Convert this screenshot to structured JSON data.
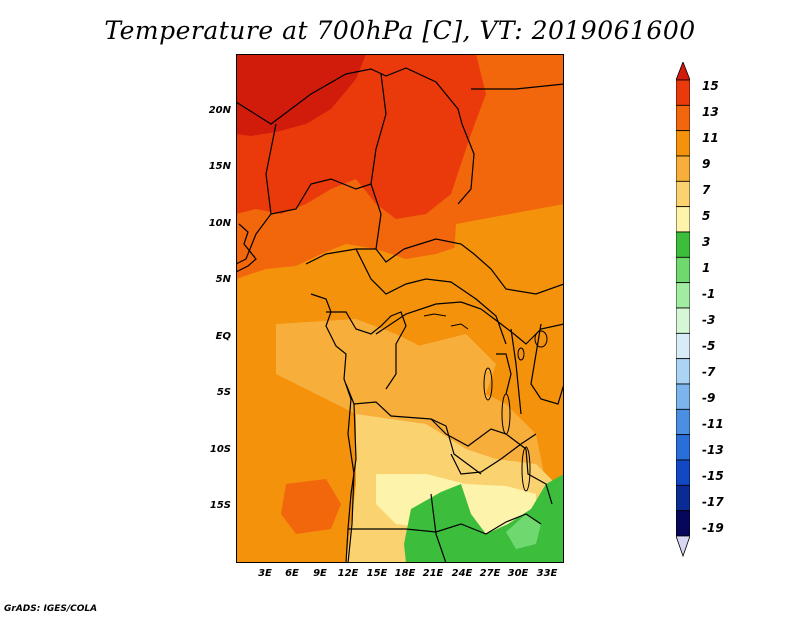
{
  "title": "Temperature at 700hPa [C], VT: 2019061600",
  "credit": "GrADS: IGES/COLA",
  "map": {
    "lat_labels": [
      "20N",
      "15N",
      "10N",
      "5N",
      "EQ",
      "5S",
      "10S",
      "15S"
    ],
    "lon_labels": [
      "3E",
      "6E",
      "9E",
      "12E",
      "15E",
      "18E",
      "21E",
      "24E",
      "27E",
      "30E",
      "33E"
    ]
  },
  "colorbar": {
    "labels": [
      "15",
      "13",
      "11",
      "9",
      "7",
      "5",
      "3",
      "1",
      "-1",
      "-3",
      "-5",
      "-7",
      "-9",
      "-11",
      "-13",
      "-15",
      "-17",
      "-19"
    ],
    "colors": [
      "#d11c0c",
      "#ea3a0c",
      "#f2660c",
      "#f4920c",
      "#f7ae3a",
      "#fbd270",
      "#fdf3aa",
      "#3cbd3c",
      "#6fd96f",
      "#a2eba2",
      "#d6f7d6",
      "#d8ecf8",
      "#a9d4f4",
      "#7cb4ee",
      "#4b8fe3",
      "#2a6fd9",
      "#1248c4",
      "#0a2a94",
      "#06065a",
      "#d8d8f4"
    ]
  }
}
